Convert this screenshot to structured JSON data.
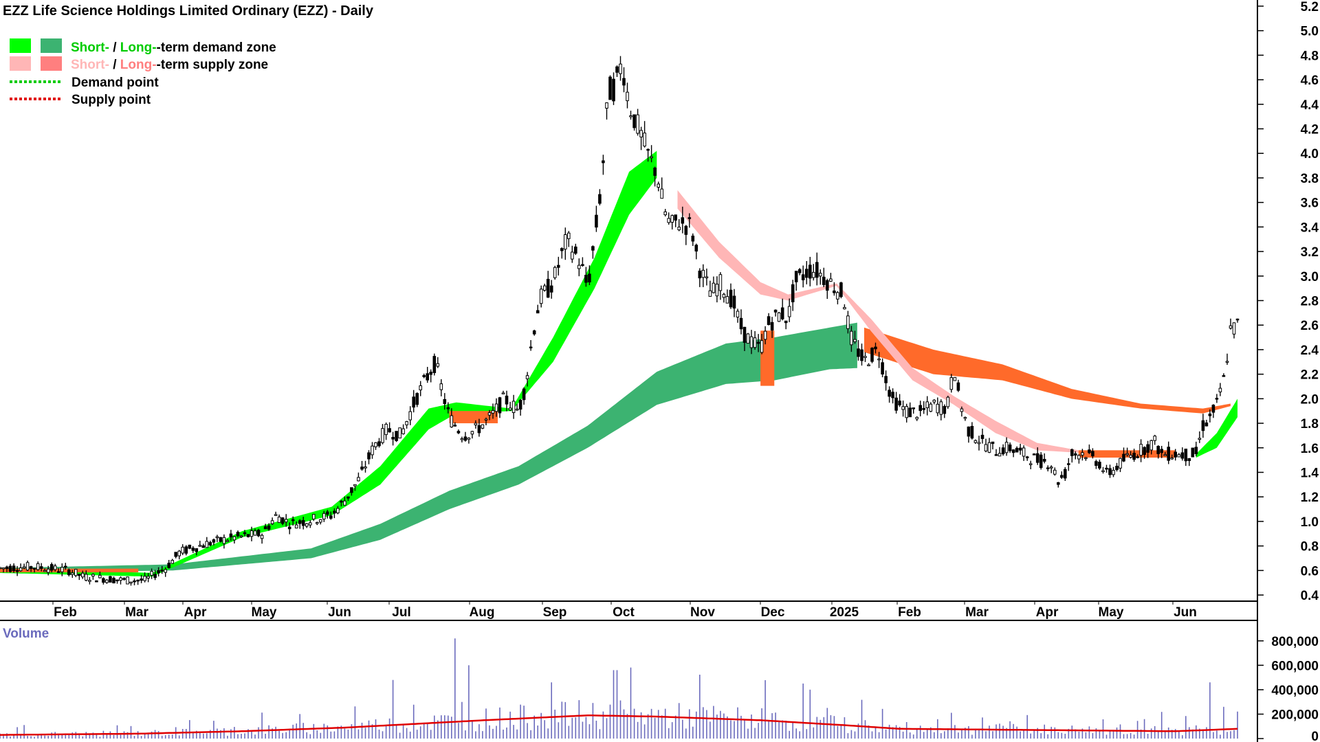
{
  "chart_data": [
    {
      "type": "candlestick",
      "title": "EZZ Life Science Holdings Limited Ordinary (EZZ) - Daily",
      "legend": [
        {
          "short_label": "Short-",
          "separator": " / ",
          "long_label": "Long-",
          "suffix": "-term demand zone",
          "short_color": "#00ff00",
          "long_color": "#3cb371"
        },
        {
          "short_label": "Short-",
          "separator": " / ",
          "long_label": "Long-",
          "suffix": "-term supply zone",
          "short_color": "#ffb6b6",
          "long_color": "#ff7f7f"
        },
        {
          "label": "Demand point",
          "color": "#00cc00",
          "style": "dotted"
        },
        {
          "label": "Supply point",
          "color": "#e00000",
          "style": "dotted"
        }
      ],
      "x_tick_labels": [
        "Feb",
        "Mar",
        "Apr",
        "May",
        "Jun",
        "Jul",
        "Aug",
        "Sep",
        "Oct",
        "Nov",
        "Dec",
        "2025",
        "Feb",
        "Mar",
        "Apr",
        "May",
        "Jun"
      ],
      "y_tick_labels": [
        "0.4",
        "0.6",
        "0.8",
        "1.0",
        "1.2",
        "1.4",
        "1.6",
        "1.8",
        "2.0",
        "2.2",
        "2.4",
        "2.6",
        "2.8",
        "3.0",
        "3.2",
        "3.4",
        "3.6",
        "3.8",
        "4.0",
        "4.2",
        "4.4",
        "4.6",
        "4.8",
        "5.0",
        "5.2"
      ],
      "ylim": [
        0.35,
        5.25
      ],
      "grid": false,
      "legend_placement": "top-left",
      "price_path": [
        {
          "t": 0,
          "v": 0.62
        },
        {
          "t": 5,
          "v": 0.63
        },
        {
          "t": 10,
          "v": 0.6
        },
        {
          "t": 12,
          "v": 0.55
        },
        {
          "t": 18,
          "v": 0.52
        },
        {
          "t": 21,
          "v": 0.52
        },
        {
          "t": 22,
          "v": 0.56
        },
        {
          "t": 24,
          "v": 0.62
        },
        {
          "t": 26,
          "v": 0.75
        },
        {
          "t": 30,
          "v": 0.82
        },
        {
          "t": 34,
          "v": 0.87
        },
        {
          "t": 38,
          "v": 0.9
        },
        {
          "t": 40,
          "v": 1.05
        },
        {
          "t": 42,
          "v": 0.98
        },
        {
          "t": 44,
          "v": 1.0
        },
        {
          "t": 48,
          "v": 1.05
        },
        {
          "t": 50,
          "v": 1.18
        },
        {
          "t": 52,
          "v": 1.35
        },
        {
          "t": 54,
          "v": 1.6
        },
        {
          "t": 56,
          "v": 1.75
        },
        {
          "t": 58,
          "v": 1.7
        },
        {
          "t": 60,
          "v": 1.98
        },
        {
          "t": 62,
          "v": 2.2
        },
        {
          "t": 63,
          "v": 2.3
        },
        {
          "t": 64,
          "v": 2.05
        },
        {
          "t": 65,
          "v": 1.85
        },
        {
          "t": 67,
          "v": 1.7
        },
        {
          "t": 69,
          "v": 1.75
        },
        {
          "t": 71,
          "v": 1.85
        },
        {
          "t": 73,
          "v": 2.0
        },
        {
          "t": 75,
          "v": 1.9
        },
        {
          "t": 76,
          "v": 2.1
        },
        {
          "t": 77,
          "v": 2.5
        },
        {
          "t": 78,
          "v": 2.8
        },
        {
          "t": 80,
          "v": 2.95
        },
        {
          "t": 82,
          "v": 3.3
        },
        {
          "t": 84,
          "v": 3.1
        },
        {
          "t": 85,
          "v": 2.9
        },
        {
          "t": 86,
          "v": 3.3
        },
        {
          "t": 87,
          "v": 3.75
        },
        {
          "t": 88,
          "v": 4.5
        },
        {
          "t": 89,
          "v": 4.55
        },
        {
          "t": 90,
          "v": 4.75
        },
        {
          "t": 91,
          "v": 4.4
        },
        {
          "t": 92,
          "v": 4.25
        },
        {
          "t": 93,
          "v": 4.1
        },
        {
          "t": 94,
          "v": 3.95
        },
        {
          "t": 95,
          "v": 3.85
        },
        {
          "t": 96,
          "v": 3.55
        },
        {
          "t": 97,
          "v": 3.4
        },
        {
          "t": 98,
          "v": 3.45
        },
        {
          "t": 100,
          "v": 3.4
        },
        {
          "t": 101,
          "v": 3.1
        },
        {
          "t": 102,
          "v": 2.95
        },
        {
          "t": 103,
          "v": 2.85
        },
        {
          "t": 104,
          "v": 2.95
        },
        {
          "t": 106,
          "v": 2.8
        },
        {
          "t": 107,
          "v": 2.6
        },
        {
          "t": 108,
          "v": 2.5
        },
        {
          "t": 110,
          "v": 2.4
        },
        {
          "t": 111,
          "v": 2.6
        },
        {
          "t": 113,
          "v": 2.7
        },
        {
          "t": 114,
          "v": 2.65
        },
        {
          "t": 115,
          "v": 2.95
        },
        {
          "t": 117,
          "v": 3.05
        },
        {
          "t": 118,
          "v": 3.05
        },
        {
          "t": 120,
          "v": 2.95
        },
        {
          "t": 122,
          "v": 2.85
        },
        {
          "t": 123,
          "v": 2.5
        },
        {
          "t": 125,
          "v": 2.3
        },
        {
          "t": 127,
          "v": 2.4
        },
        {
          "t": 128,
          "v": 2.2
        },
        {
          "t": 129,
          "v": 2.0
        },
        {
          "t": 131,
          "v": 1.9
        },
        {
          "t": 133,
          "v": 1.88
        },
        {
          "t": 135,
          "v": 1.95
        },
        {
          "t": 137,
          "v": 1.92
        },
        {
          "t": 138,
          "v": 2.25
        },
        {
          "t": 139,
          "v": 1.95
        },
        {
          "t": 140,
          "v": 1.75
        },
        {
          "t": 142,
          "v": 1.65
        },
        {
          "t": 144,
          "v": 1.58
        },
        {
          "t": 146,
          "v": 1.6
        },
        {
          "t": 148,
          "v": 1.55
        },
        {
          "t": 150,
          "v": 1.5
        },
        {
          "t": 152,
          "v": 1.48
        },
        {
          "t": 153,
          "v": 1.33
        },
        {
          "t": 154,
          "v": 1.38
        },
        {
          "t": 155,
          "v": 1.55
        },
        {
          "t": 157,
          "v": 1.56
        },
        {
          "t": 159,
          "v": 1.48
        },
        {
          "t": 160,
          "v": 1.38
        },
        {
          "t": 161,
          "v": 1.42
        },
        {
          "t": 163,
          "v": 1.52
        },
        {
          "t": 165,
          "v": 1.58
        },
        {
          "t": 167,
          "v": 1.65
        },
        {
          "t": 168,
          "v": 1.55
        },
        {
          "t": 170,
          "v": 1.55
        },
        {
          "t": 172,
          "v": 1.54
        },
        {
          "t": 173,
          "v": 1.55
        },
        {
          "t": 174,
          "v": 1.78
        },
        {
          "t": 175,
          "v": 1.85
        },
        {
          "t": 176,
          "v": 1.95
        },
        {
          "t": 177,
          "v": 2.15
        },
        {
          "t": 178,
          "v": 2.55
        },
        {
          "t": 179,
          "v": 2.6
        }
      ],
      "short_demand_band": [
        {
          "t": 0,
          "lo": 0.58,
          "hi": 0.62
        },
        {
          "t": 22,
          "lo": 0.55,
          "hi": 0.58
        },
        {
          "t": 35,
          "lo": 0.87,
          "hi": 0.92
        },
        {
          "t": 48,
          "lo": 1.05,
          "hi": 1.12
        },
        {
          "t": 55,
          "lo": 1.3,
          "hi": 1.45
        },
        {
          "t": 62,
          "lo": 1.75,
          "hi": 1.92
        },
        {
          "t": 66,
          "lo": 1.88,
          "hi": 1.97
        },
        {
          "t": 74,
          "lo": 1.9,
          "hi": 1.92
        },
        {
          "t": 80,
          "lo": 2.3,
          "hi": 2.5
        },
        {
          "t": 86,
          "lo": 2.9,
          "hi": 3.15
        },
        {
          "t": 91,
          "lo": 3.5,
          "hi": 3.85
        },
        {
          "t": 95,
          "lo": 3.8,
          "hi": 4.02
        }
      ],
      "long_demand_band": [
        {
          "t": 0,
          "lo": 0.58,
          "hi": 0.62
        },
        {
          "t": 25,
          "lo": 0.6,
          "hi": 0.65
        },
        {
          "t": 45,
          "lo": 0.7,
          "hi": 0.78
        },
        {
          "t": 55,
          "lo": 0.85,
          "hi": 0.98
        },
        {
          "t": 65,
          "lo": 1.1,
          "hi": 1.25
        },
        {
          "t": 75,
          "lo": 1.3,
          "hi": 1.45
        },
        {
          "t": 85,
          "lo": 1.6,
          "hi": 1.78
        },
        {
          "t": 95,
          "lo": 1.95,
          "hi": 2.22
        },
        {
          "t": 105,
          "lo": 2.12,
          "hi": 2.45
        },
        {
          "t": 112,
          "lo": 2.15,
          "hi": 2.5
        },
        {
          "t": 120,
          "lo": 2.24,
          "hi": 2.58
        },
        {
          "t": 124,
          "lo": 2.25,
          "hi": 2.62
        }
      ],
      "short_supply_band": [
        {
          "t": 98,
          "lo": 3.55,
          "hi": 3.7
        },
        {
          "t": 104,
          "lo": 3.15,
          "hi": 3.28
        },
        {
          "t": 110,
          "lo": 2.85,
          "hi": 2.95
        },
        {
          "t": 114,
          "lo": 2.8,
          "hi": 2.85
        },
        {
          "t": 121,
          "lo": 2.92,
          "hi": 2.94
        },
        {
          "t": 126,
          "lo": 2.55,
          "hi": 2.65
        },
        {
          "t": 132,
          "lo": 2.15,
          "hi": 2.25
        },
        {
          "t": 138,
          "lo": 1.95,
          "hi": 2.02
        },
        {
          "t": 144,
          "lo": 1.72,
          "hi": 1.82
        },
        {
          "t": 150,
          "lo": 1.58,
          "hi": 1.64
        },
        {
          "t": 156,
          "lo": 1.56,
          "hi": 1.58
        }
      ],
      "long_supply_band": [
        {
          "t": 125,
          "lo": 2.38,
          "hi": 2.58
        },
        {
          "t": 135,
          "lo": 2.2,
          "hi": 2.4
        },
        {
          "t": 145,
          "lo": 2.15,
          "hi": 2.28
        },
        {
          "t": 155,
          "lo": 2.0,
          "hi": 2.08
        },
        {
          "t": 165,
          "lo": 1.92,
          "hi": 1.96
        },
        {
          "t": 174,
          "lo": 1.88,
          "hi": 1.92
        },
        {
          "t": 178,
          "lo": 1.94,
          "hi": 1.96
        }
      ],
      "supply_switch_segments": [
        {
          "t0": 0,
          "t1": 20,
          "v": 0.6,
          "thickness": 0.03
        },
        {
          "t0": 65,
          "t1": 72,
          "v": 1.85,
          "thickness": 0.1
        },
        {
          "t0": 110,
          "t1": 112,
          "v": 2.33,
          "thickness": 0.45
        },
        {
          "t0": 156,
          "t1": 170,
          "v": 1.55,
          "thickness": 0.06
        }
      ],
      "late_demand_band": [
        {
          "t": 173,
          "lo": 1.52,
          "hi": 1.55
        },
        {
          "t": 176,
          "lo": 1.6,
          "hi": 1.72
        },
        {
          "t": 179,
          "lo": 1.85,
          "hi": 2.0
        }
      ]
    },
    {
      "type": "bar",
      "title": "Volume",
      "y_tick_labels": [
        "0",
        "200,000",
        "400,000",
        "600,000",
        "800,000"
      ],
      "ylim": [
        0,
        900000
      ],
      "bar_color": "#6b6bbd",
      "ma_color": "#e00000",
      "volume_hint_spikes": [
        {
          "t": 66,
          "v": 820000
        },
        {
          "t": 67,
          "v": 300000
        },
        {
          "t": 68,
          "v": 600000
        },
        {
          "t": 57,
          "v": 480000
        },
        {
          "t": 80,
          "v": 460000
        },
        {
          "t": 89,
          "v": 560000
        },
        {
          "t": 175,
          "v": 460000
        },
        {
          "t": 177,
          "v": 260000
        }
      ],
      "volume_ma_path": [
        {
          "t": 0,
          "v": 30000
        },
        {
          "t": 20,
          "v": 40000
        },
        {
          "t": 35,
          "v": 60000
        },
        {
          "t": 50,
          "v": 90000
        },
        {
          "t": 60,
          "v": 120000
        },
        {
          "t": 70,
          "v": 150000
        },
        {
          "t": 85,
          "v": 190000
        },
        {
          "t": 95,
          "v": 180000
        },
        {
          "t": 110,
          "v": 150000
        },
        {
          "t": 122,
          "v": 110000
        },
        {
          "t": 130,
          "v": 80000
        },
        {
          "t": 150,
          "v": 70000
        },
        {
          "t": 170,
          "v": 60000
        },
        {
          "t": 179,
          "v": 80000
        }
      ]
    }
  ]
}
